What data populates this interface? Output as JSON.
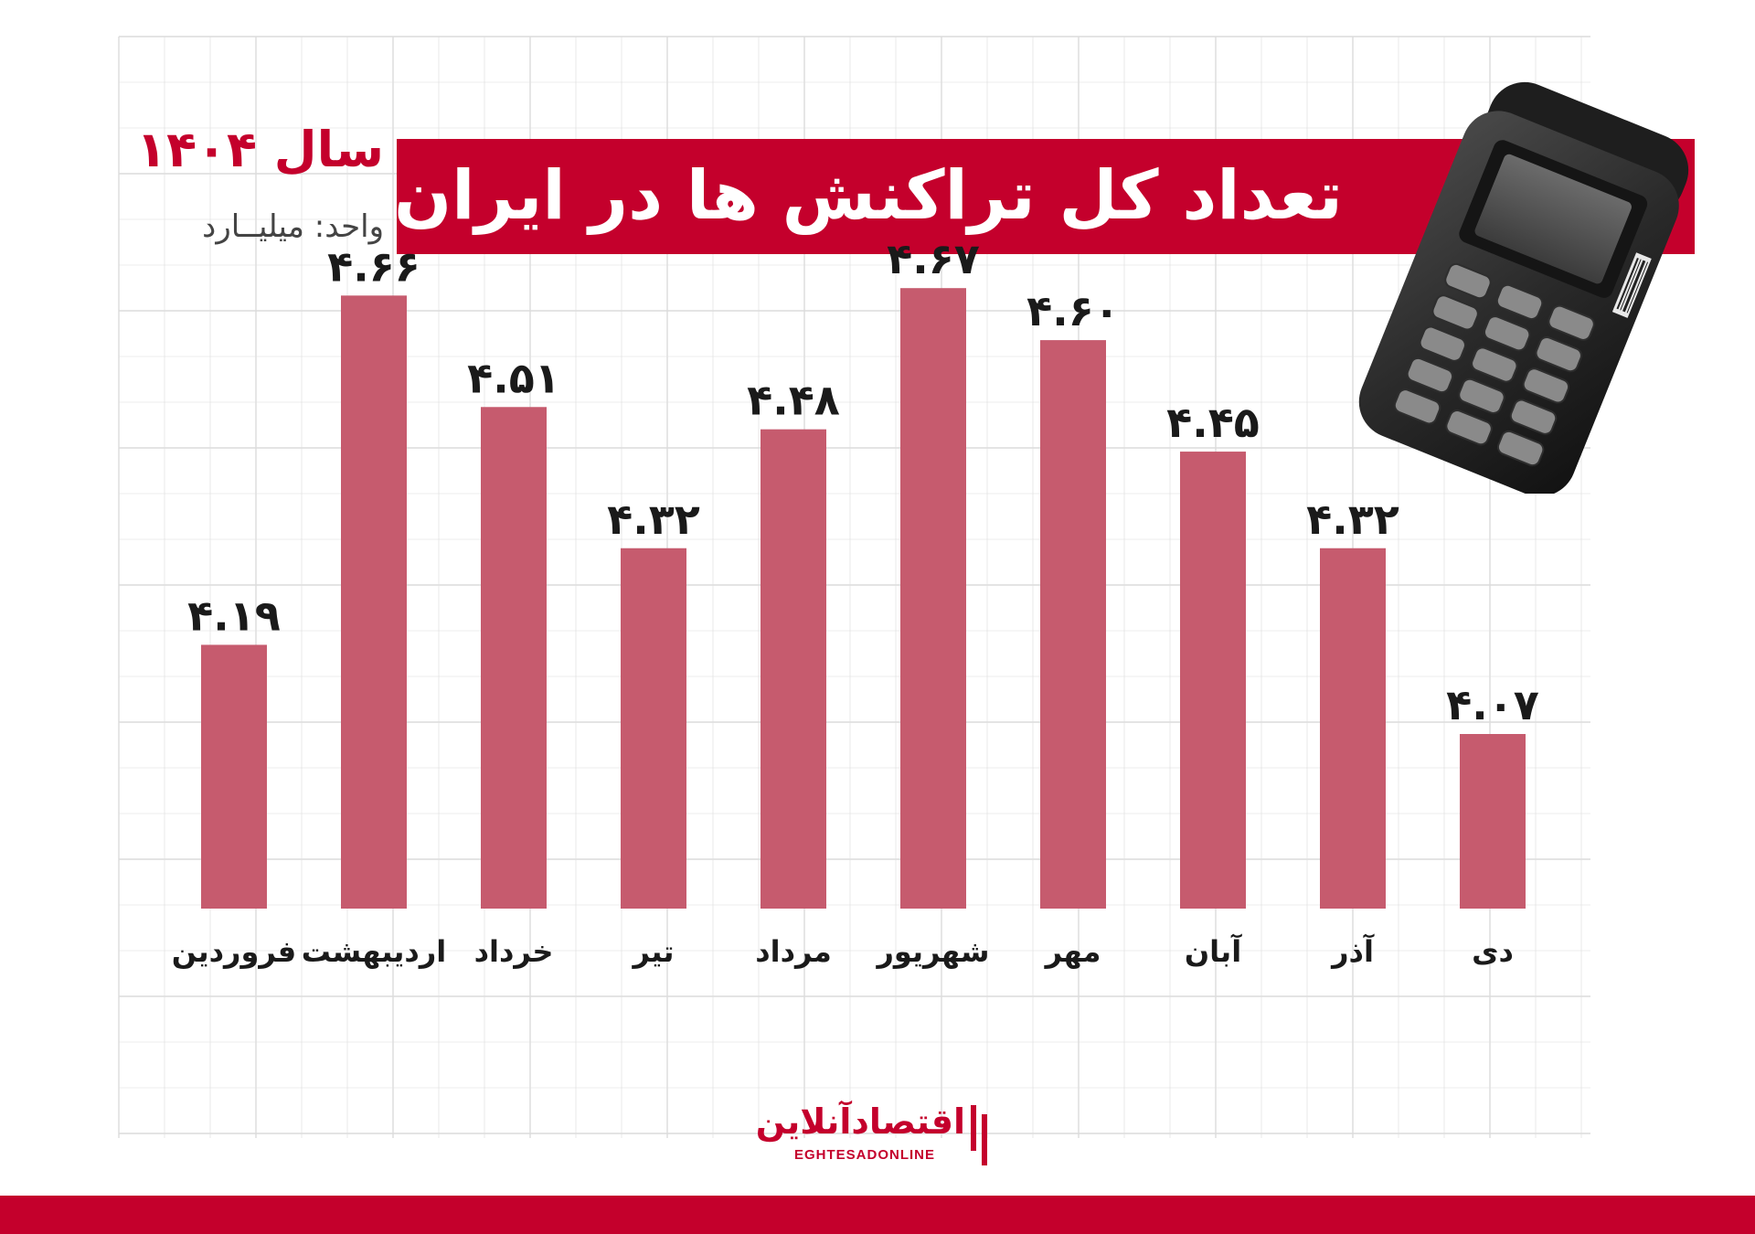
{
  "title": "تعداد کل تراکنش ها در ایران",
  "year_label": "سال ۱۴۰۴",
  "unit_label": "واحد: میلیــارد",
  "logo": {
    "name_fa": "اقتصادآنلاین",
    "name_en": "EGHTESADONLINE"
  },
  "colors": {
    "accent": "#c4002c",
    "bar": "#c65b6e",
    "grid": "#dcdcdc"
  },
  "chart_data": {
    "type": "bar",
    "categories": [
      "فروردین",
      "اردیبهشت",
      "خرداد",
      "تیر",
      "مرداد",
      "شهریور",
      "مهر",
      "آبان",
      "آذر",
      "دی"
    ],
    "values": [
      4.19,
      4.66,
      4.51,
      4.32,
      4.48,
      4.67,
      4.6,
      4.45,
      4.32,
      4.07
    ],
    "value_labels": [
      "۴.۱۹",
      "۴.۶۶",
      "۴.۵۱",
      "۴.۳۲",
      "۴.۴۸",
      "۴.۶۷",
      "۴.۶۰",
      "۴.۴۵",
      "۴.۳۲",
      "۴.۰۷"
    ],
    "title": "تعداد کل تراکنش ها در ایران",
    "xlabel": "",
    "ylabel": "",
    "grid": true,
    "legend": "none"
  }
}
